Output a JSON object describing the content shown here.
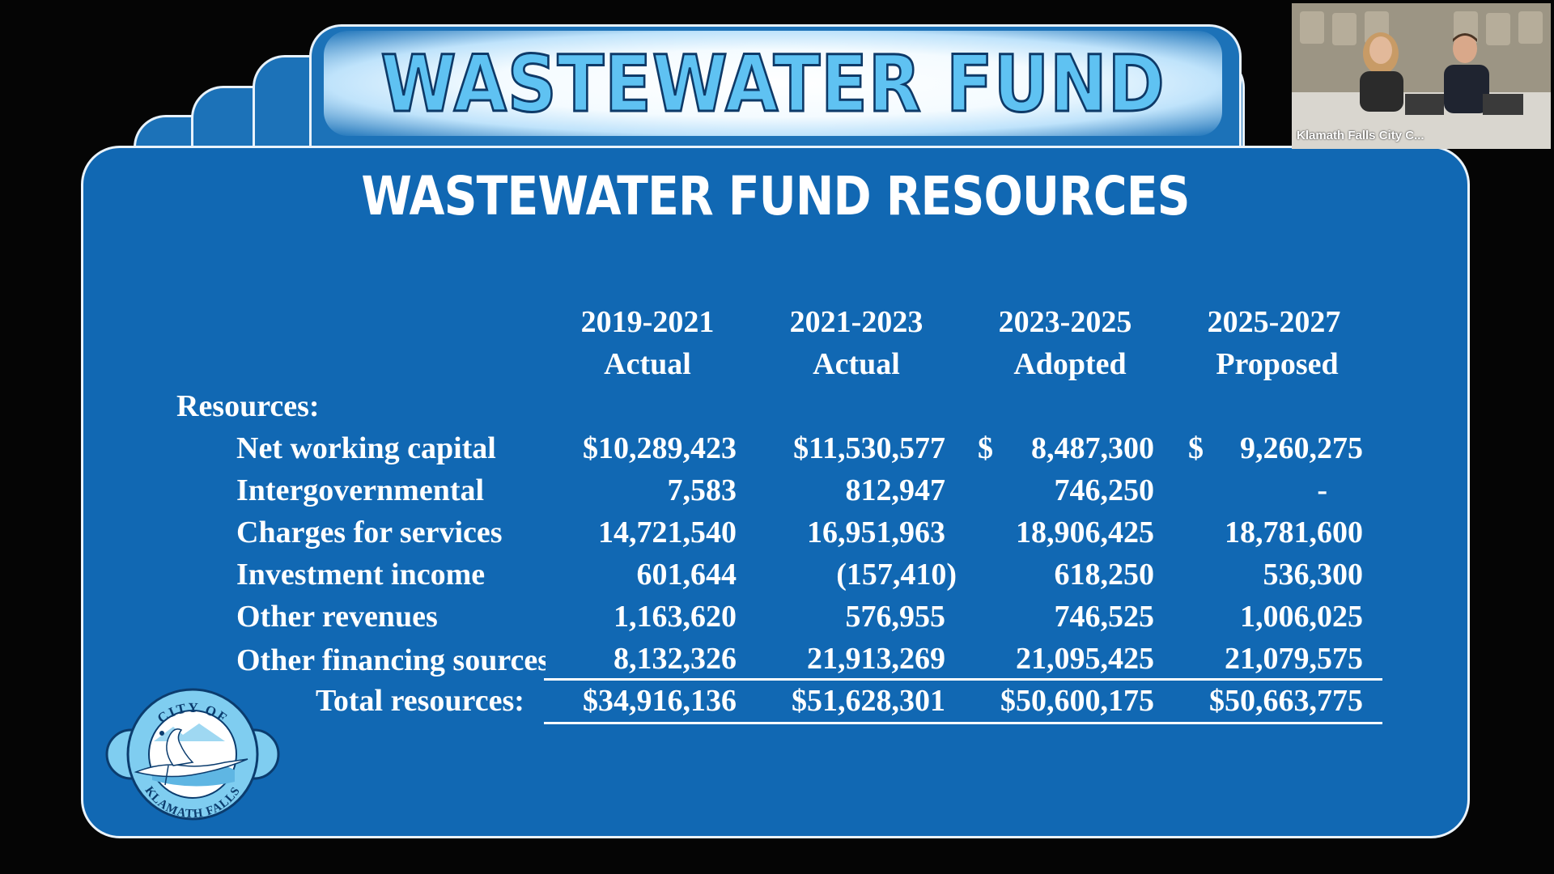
{
  "slide": {
    "title": "WASTEWATER FUND",
    "subtitle": "WASTEWATER FUND RESOURCES"
  },
  "table": {
    "columns": [
      {
        "period": "2019-2021",
        "status": "Actual"
      },
      {
        "period": "2021-2023",
        "status": "Actual"
      },
      {
        "period": "2023-2025",
        "status": "Adopted"
      },
      {
        "period": "2025-2027",
        "status": "Proposed"
      }
    ],
    "section_label": "Resources:",
    "rows": [
      {
        "label": "Net working capital",
        "values": [
          "$10,289,423",
          "$11,530,577",
          "8,487,300",
          "9,260,275"
        ]
      },
      {
        "label": "Intergovernmental",
        "values": [
          "7,583",
          "812,947",
          "746,250",
          "-"
        ]
      },
      {
        "label": "Charges for services",
        "values": [
          "14,721,540",
          "16,951,963",
          "18,906,425",
          "18,781,600"
        ]
      },
      {
        "label": "Investment income",
        "values": [
          "601,644",
          "(157,410)",
          "618,250",
          "536,300"
        ]
      },
      {
        "label": "Other revenues",
        "values": [
          "1,163,620",
          "576,955",
          "746,525",
          "1,006,025"
        ]
      },
      {
        "label": "Other financing sources",
        "values": [
          "8,132,326",
          "21,913,269",
          "21,095,425",
          "21,079,575"
        ]
      }
    ],
    "dollar_sign": "$",
    "total": {
      "label": "Total resources:",
      "values": [
        "$34,916,136",
        "$51,628,301",
        "$50,600,175",
        "$50,663,775"
      ]
    }
  },
  "logo": {
    "top_text": "CITY OF",
    "bottom_text": "KLAMATH FALLS",
    "colors": {
      "ring": "#7fcdf0",
      "outline": "#0b3c6e",
      "bird": "#ffffff"
    }
  },
  "webcam": {
    "caption": "Klamath Falls City C..."
  },
  "colors": {
    "panel": "#1168b3",
    "title_fill": "#5fc2f2",
    "text": "#ffffff",
    "background": "#050505"
  }
}
